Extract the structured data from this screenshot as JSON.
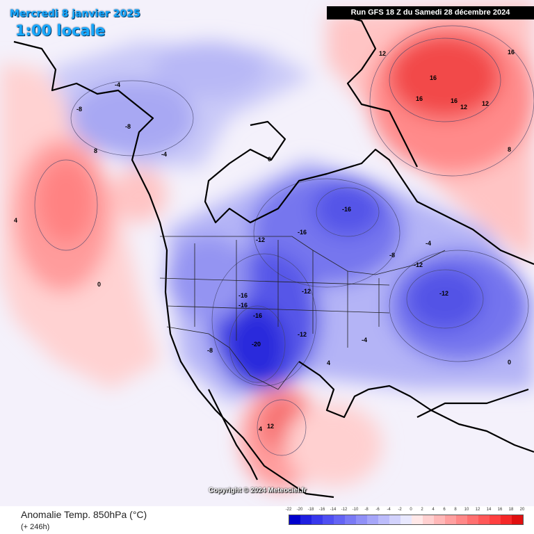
{
  "header": {
    "date": "Mercredi 8 janvier 2025",
    "local_time": "1:00 locale",
    "run_info": "Run GFS 18 Z du Samedi 28 décembre 2024"
  },
  "footer": {
    "variable": "Anomalie Temp. 850hPa (°C)",
    "lead_time": "(+ 246h)",
    "copyright": "Copyright © 2024 Meteociel.fr"
  },
  "legend": {
    "labels": [
      "-22",
      "-20",
      "-18",
      "-16",
      "-14",
      "-12",
      "-10",
      "-8",
      "-6",
      "-4",
      "-2",
      "0",
      "2",
      "4",
      "6",
      "8",
      "10",
      "12",
      "14",
      "16",
      "18",
      "20"
    ],
    "colors": [
      "#0000cc",
      "#1f1fe0",
      "#3838ec",
      "#4f4ff2",
      "#6464f4",
      "#7a7af5",
      "#9090f7",
      "#a6a6f9",
      "#bcbcfb",
      "#d2d2fc",
      "#e8e8fe",
      "#ffe8e8",
      "#ffd0d0",
      "#ffb8b8",
      "#ffa0a0",
      "#ff8888",
      "#ff7070",
      "#ff5858",
      "#ff4040",
      "#f52828",
      "#e01010"
    ]
  },
  "colors": {
    "cold_core": "#2020d8",
    "cold_mid": "#6a6af2",
    "cold_light": "#c8c8fa",
    "warm_light": "#ffd6d6",
    "warm_mid": "#ff9a9a",
    "warm_core": "#f23a3a",
    "title_blue": "#17a8ff"
  },
  "map_labels": [
    {
      "text": "-20"
    },
    {
      "text": "-16"
    },
    {
      "text": "-16"
    },
    {
      "text": "-16"
    },
    {
      "text": "-16"
    },
    {
      "text": "-12"
    },
    {
      "text": "-12"
    },
    {
      "text": "-12"
    },
    {
      "text": "-12"
    },
    {
      "text": "-8"
    },
    {
      "text": "-8"
    },
    {
      "text": "-8"
    },
    {
      "text": "-4"
    },
    {
      "text": "-4"
    },
    {
      "text": "-4"
    },
    {
      "text": "0"
    },
    {
      "text": "0"
    },
    {
      "text": "0"
    },
    {
      "text": "4"
    },
    {
      "text": "4"
    },
    {
      "text": "4"
    },
    {
      "text": "8"
    },
    {
      "text": "8"
    },
    {
      "text": "12"
    },
    {
      "text": "12"
    },
    {
      "text": "12"
    },
    {
      "text": "12"
    },
    {
      "text": "16"
    },
    {
      "text": "16"
    },
    {
      "text": "16"
    },
    {
      "text": "16"
    },
    {
      "text": "-16"
    },
    {
      "text": "-12"
    },
    {
      "text": "-8"
    },
    {
      "text": "-4"
    }
  ]
}
